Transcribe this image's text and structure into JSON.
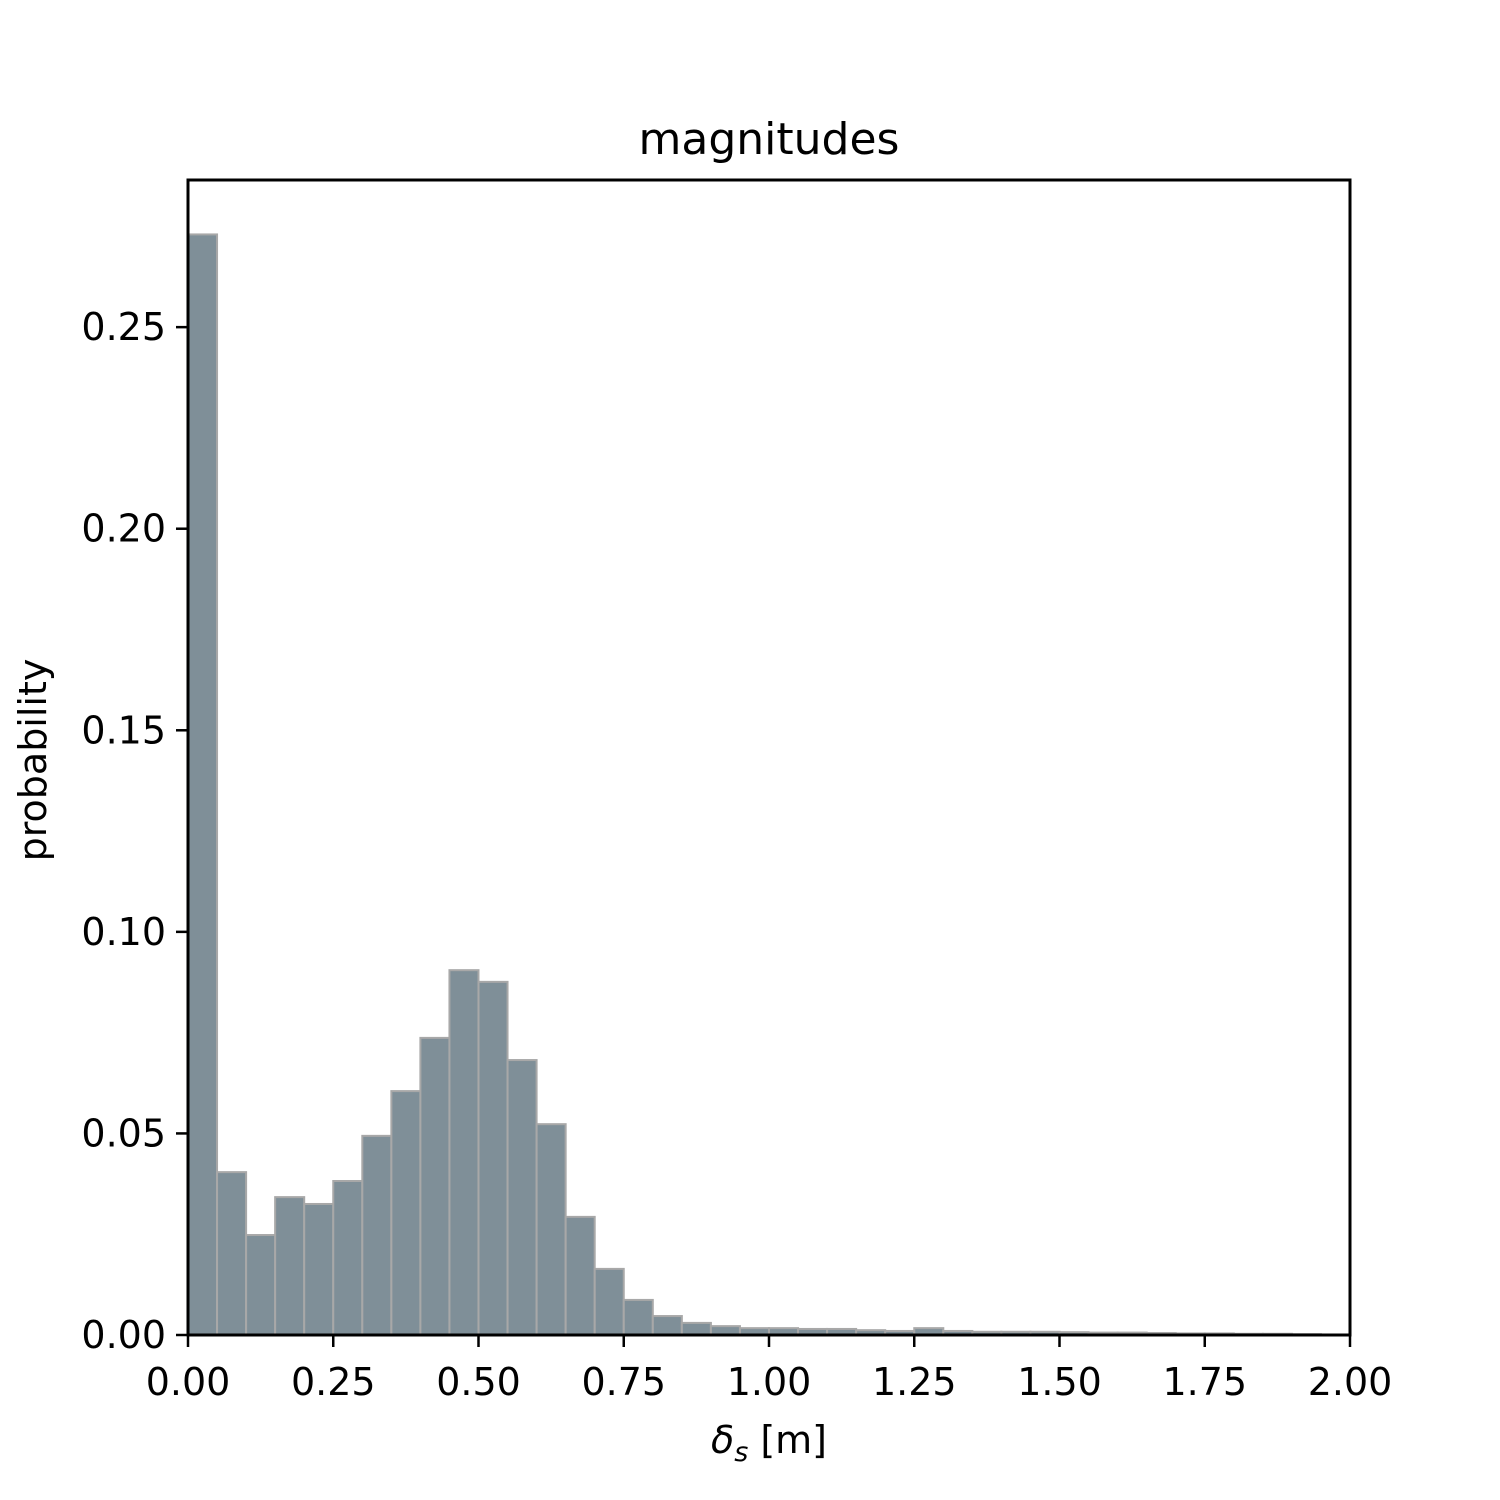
{
  "chart_data": {
    "type": "histogram",
    "title": "magnitudes",
    "xlabel": [
      "δ",
      "s",
      "[m]"
    ],
    "ylabel": "probability",
    "bins": [
      0,
      0.05,
      0.1,
      0.15,
      0.2,
      0.25,
      0.3,
      0.35,
      0.4,
      0.45,
      0.5,
      0.55,
      0.6,
      0.65,
      0.7,
      0.75,
      0.8,
      0.85,
      0.9,
      0.95,
      1.0,
      1.05,
      1.1,
      1.15,
      1.2,
      1.25,
      1.3,
      1.35,
      1.4,
      1.45,
      1.5,
      1.55,
      1.6,
      1.65,
      1.7,
      1.75,
      1.8,
      1.85,
      1.9,
      1.95
    ],
    "values": [
      0.273,
      0.0404,
      0.0248,
      0.0342,
      0.0325,
      0.0382,
      0.0494,
      0.0605,
      0.0737,
      0.0905,
      0.0876,
      0.0682,
      0.0523,
      0.0293,
      0.0164,
      0.0087,
      0.0047,
      0.003,
      0.0022,
      0.0017,
      0.0017,
      0.0015,
      0.0015,
      0.0012,
      0.001,
      0.0017,
      0.001,
      0.0008,
      0.0008,
      0.0008,
      0.0007,
      0.0006,
      0.0006,
      0.0005,
      0.0004,
      0.0004,
      0.0003,
      0.0003,
      0.0002
    ],
    "color": "#7f8f98",
    "edgecolor": "#a8a8a8",
    "xlim": [
      0,
      2
    ],
    "ylim": [
      0,
      0.2865
    ],
    "xticks": [
      {
        "value": 0,
        "label": "0.00"
      },
      {
        "value": 0.25,
        "label": "0.25"
      },
      {
        "value": 0.5,
        "label": "0.50"
      },
      {
        "value": 0.75,
        "label": "0.75"
      },
      {
        "value": 1,
        "label": "1.00"
      },
      {
        "value": 1.25,
        "label": "1.25"
      },
      {
        "value": 1.5,
        "label": "1.50"
      },
      {
        "value": 1.75,
        "label": "1.75"
      },
      {
        "value": 2,
        "label": "2.00"
      }
    ],
    "yticks": [
      {
        "value": 0,
        "label": "0.00"
      },
      {
        "value": 0.05,
        "label": "0.05"
      },
      {
        "value": 0.1,
        "label": "0.10"
      },
      {
        "value": 0.15,
        "label": "0.15"
      },
      {
        "value": 0.2,
        "label": "0.20"
      },
      {
        "value": 0.25,
        "label": "0.25"
      }
    ],
    "grid": false
  }
}
